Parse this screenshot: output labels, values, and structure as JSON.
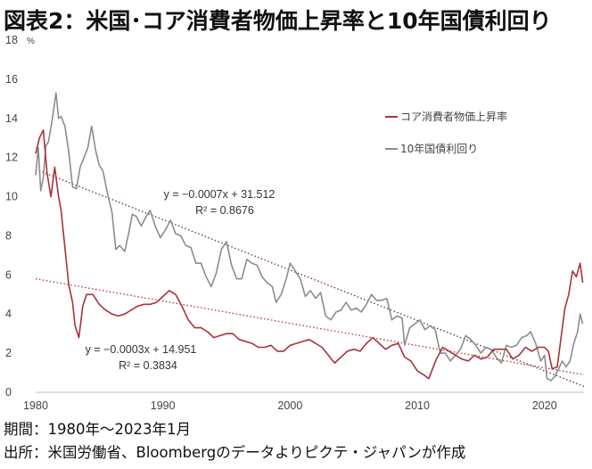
{
  "header": {
    "title": "図表2：米国･コア消費者物価上昇率と10年国債利回り"
  },
  "footer": {
    "period": "期間：1980年～2023年1月",
    "source": "出所：米国労働省、Bloombergのデータよりピクテ・ジャパンが作成"
  },
  "colors": {
    "core_cpi": "#a8333a",
    "yield_10y": "#8c8c8c",
    "trend_cpi": "#a8333a",
    "trend_yield": "#6e2a3a"
  },
  "chart_data": {
    "type": "line",
    "unit_label": "%",
    "xlim": [
      1980,
      2023.1
    ],
    "ylim": [
      0,
      18
    ],
    "x_ticks": [
      1980,
      1990,
      2000,
      2010,
      2020
    ],
    "y_ticks": [
      0,
      2,
      4,
      6,
      8,
      10,
      12,
      14,
      16,
      18
    ],
    "legend_position": "top-right",
    "series": [
      {
        "name": "コア消費者物価上昇率",
        "color": "#a8333a",
        "x": [
          1980.0,
          1980.3,
          1980.6,
          1980.9,
          1981.2,
          1981.5,
          1981.8,
          1982.0,
          1982.3,
          1982.6,
          1982.9,
          1983.1,
          1983.4,
          1983.7,
          1984.0,
          1984.5,
          1985.0,
          1985.5,
          1986.0,
          1986.5,
          1987.0,
          1987.5,
          1988.0,
          1988.5,
          1989.0,
          1989.5,
          1990.0,
          1990.5,
          1991.0,
          1991.5,
          1992.0,
          1992.5,
          1993.0,
          1993.5,
          1994.0,
          1994.5,
          1995.0,
          1995.5,
          1996.0,
          1996.5,
          1997.0,
          1997.5,
          1998.0,
          1998.5,
          1999.0,
          1999.5,
          2000.0,
          2000.5,
          2001.0,
          2001.5,
          2002.0,
          2002.5,
          2003.0,
          2003.5,
          2004.0,
          2004.5,
          2005.0,
          2005.5,
          2006.0,
          2006.5,
          2007.0,
          2007.5,
          2008.0,
          2008.5,
          2009.0,
          2009.5,
          2010.0,
          2010.5,
          2010.9,
          2011.5,
          2012.0,
          2012.5,
          2013.0,
          2013.5,
          2014.0,
          2014.5,
          2015.0,
          2015.5,
          2016.0,
          2016.5,
          2017.0,
          2017.5,
          2018.0,
          2018.5,
          2019.0,
          2019.5,
          2020.0,
          2020.3,
          2020.6,
          2021.0,
          2021.3,
          2021.6,
          2021.9,
          2022.2,
          2022.5,
          2022.8,
          2023.0
        ],
        "values": [
          12.2,
          13.0,
          13.4,
          11.2,
          10.0,
          11.5,
          10.0,
          9.3,
          7.4,
          5.5,
          4.6,
          3.4,
          2.8,
          4.4,
          5.0,
          5.0,
          4.5,
          4.2,
          4.0,
          3.9,
          4.0,
          4.2,
          4.4,
          4.5,
          4.5,
          4.6,
          4.9,
          5.2,
          5.0,
          4.4,
          3.7,
          3.3,
          3.3,
          3.1,
          2.8,
          2.9,
          3.0,
          3.0,
          2.7,
          2.6,
          2.5,
          2.3,
          2.3,
          2.4,
          2.1,
          2.1,
          2.4,
          2.5,
          2.6,
          2.7,
          2.5,
          2.3,
          1.9,
          1.5,
          1.8,
          2.1,
          2.2,
          2.1,
          2.5,
          2.8,
          2.5,
          2.2,
          2.4,
          2.5,
          1.8,
          1.6,
          1.1,
          0.9,
          0.7,
          1.7,
          2.3,
          2.1,
          1.9,
          1.7,
          1.6,
          1.9,
          1.7,
          1.8,
          2.2,
          2.2,
          2.2,
          1.7,
          1.9,
          2.3,
          2.1,
          2.3,
          2.3,
          2.1,
          1.2,
          1.3,
          2.8,
          4.3,
          5.0,
          6.2,
          5.9,
          6.6,
          5.6
        ]
      },
      {
        "name": "10年国債利回り",
        "color": "#8c8c8c",
        "x": [
          1980.0,
          1980.2,
          1980.4,
          1980.6,
          1980.8,
          1981.0,
          1981.3,
          1981.6,
          1981.8,
          1982.0,
          1982.3,
          1982.6,
          1982.9,
          1983.2,
          1983.5,
          1983.8,
          1984.1,
          1984.4,
          1984.7,
          1985.0,
          1985.3,
          1985.6,
          1986.0,
          1986.3,
          1986.6,
          1987.0,
          1987.3,
          1987.6,
          1987.9,
          1988.3,
          1988.7,
          1989.0,
          1989.4,
          1989.8,
          1990.2,
          1990.6,
          1991.0,
          1991.4,
          1991.8,
          1992.2,
          1992.6,
          1993.0,
          1993.4,
          1993.8,
          1994.2,
          1994.6,
          1995.0,
          1995.4,
          1995.8,
          1996.2,
          1996.6,
          1997.0,
          1997.4,
          1997.8,
          1998.2,
          1998.6,
          1998.9,
          1999.3,
          1999.7,
          2000.0,
          2000.4,
          2000.8,
          2001.2,
          2001.6,
          2002.0,
          2002.4,
          2002.8,
          2003.2,
          2003.6,
          2004.0,
          2004.4,
          2004.8,
          2005.2,
          2005.6,
          2006.0,
          2006.4,
          2006.8,
          2007.2,
          2007.6,
          2008.0,
          2008.4,
          2008.8,
          2009.0,
          2009.4,
          2009.8,
          2010.2,
          2010.6,
          2011.0,
          2011.4,
          2011.8,
          2012.2,
          2012.6,
          2013.0,
          2013.4,
          2013.8,
          2014.2,
          2014.6,
          2015.0,
          2015.4,
          2015.8,
          2016.2,
          2016.6,
          2017.0,
          2017.4,
          2017.8,
          2018.2,
          2018.6,
          2018.9,
          2019.3,
          2019.7,
          2020.0,
          2020.2,
          2020.5,
          2020.8,
          2021.1,
          2021.4,
          2021.7,
          2022.0,
          2022.3,
          2022.6,
          2022.8,
          2023.0
        ],
        "values": [
          11.1,
          12.5,
          10.3,
          11.0,
          12.6,
          12.8,
          13.9,
          15.3,
          14.0,
          14.1,
          13.6,
          12.3,
          10.5,
          10.4,
          11.5,
          12.0,
          12.5,
          13.6,
          12.4,
          11.6,
          11.3,
          10.3,
          9.2,
          7.3,
          7.5,
          7.2,
          8.1,
          9.1,
          9.0,
          8.5,
          9.0,
          9.3,
          8.5,
          7.9,
          8.3,
          8.8,
          8.1,
          8.0,
          7.5,
          7.4,
          6.6,
          6.6,
          5.9,
          5.4,
          6.1,
          7.3,
          7.7,
          6.5,
          5.8,
          5.8,
          6.8,
          6.6,
          6.5,
          5.9,
          5.6,
          5.4,
          4.6,
          5.0,
          5.8,
          6.6,
          6.2,
          5.8,
          4.9,
          5.2,
          4.8,
          5.1,
          3.9,
          3.7,
          4.1,
          4.2,
          4.6,
          4.2,
          4.3,
          4.1,
          4.5,
          5.0,
          4.7,
          4.7,
          4.8,
          3.7,
          3.9,
          3.8,
          2.4,
          3.3,
          3.5,
          3.7,
          3.2,
          3.4,
          3.2,
          2.0,
          2.0,
          1.6,
          1.9,
          2.2,
          2.9,
          2.7,
          2.4,
          2.0,
          2.3,
          2.2,
          1.8,
          1.5,
          2.4,
          2.3,
          2.4,
          2.8,
          2.9,
          3.1,
          2.5,
          1.6,
          1.9,
          0.7,
          0.6,
          0.8,
          1.2,
          1.6,
          1.3,
          1.6,
          2.5,
          3.1,
          4.0,
          3.5
        ]
      }
    ],
    "trendlines": [
      {
        "label": "y = −0.0007x + 31.512",
        "r2_label": "R² = 0.8676",
        "color": "#6e2a3a",
        "x": [
          1980,
          2023.1
        ],
        "values": [
          11.4,
          0.3
        ]
      },
      {
        "label": "y = −0.0003x + 14.951",
        "r2_label": "R² = 0.3834",
        "color": "#a8333a",
        "x": [
          1980,
          2023.1
        ],
        "values": [
          5.8,
          0.9
        ]
      }
    ]
  }
}
